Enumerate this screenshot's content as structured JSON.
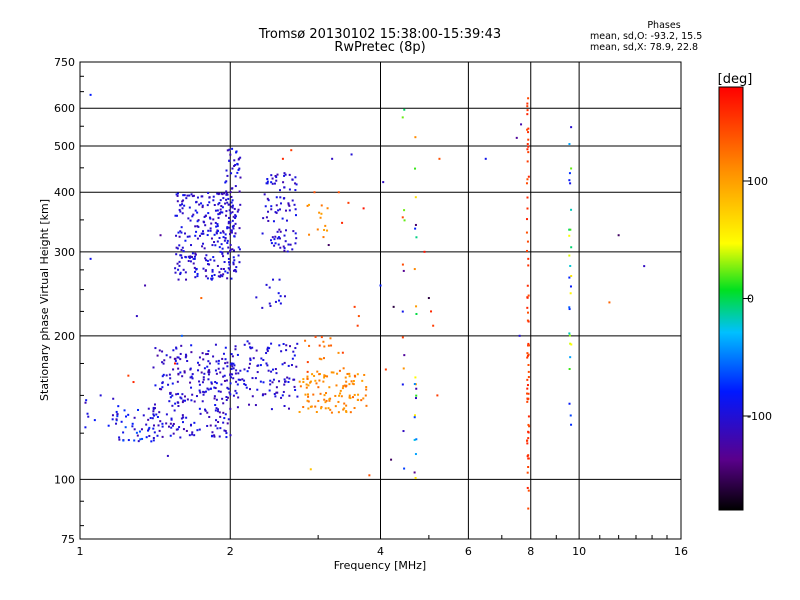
{
  "header": {
    "title_line1": "Tromsø 20130102 15:38:00-15:39:43",
    "title_line2": "RwPretec (8p)",
    "phase_title": "Phases",
    "phase_o": "mean, sd,O: -93.2, 15.5",
    "phase_x": "mean, sd,X:  78.9, 22.8"
  },
  "colorbar": {
    "unit_label": "[deg]",
    "tick_labels": [
      "100",
      "0",
      "-100"
    ],
    "tick_values": [
      100,
      0,
      -100
    ],
    "range": [
      -180,
      180
    ]
  },
  "chart_data": {
    "type": "scatter",
    "title": "Tromsø 20130102 15:38:00-15:39:43",
    "subtitle": "RwPretec (8p)",
    "xlabel": "Frequency [MHz]",
    "ylabel": "Stationary phase Virtual Height [km]",
    "x_scale": "log",
    "y_scale": "log",
    "xlim": [
      1,
      16
    ],
    "ylim": [
      75,
      750
    ],
    "x_ticks": [
      1,
      2,
      4,
      6,
      8,
      10,
      16
    ],
    "x_tick_labels": [
      "1",
      "2",
      "4",
      "6",
      "8",
      "10",
      "16"
    ],
    "y_ticks": [
      75,
      100,
      200,
      300,
      400,
      500,
      600,
      750
    ],
    "y_tick_labels": [
      "75",
      "100",
      "200",
      "300",
      "400",
      "500",
      "600",
      "750"
    ],
    "grid": true,
    "series": [
      {
        "clusters": [
          {
            "xr": [
              1.4,
              2.02
            ],
            "yr": [
              122,
              192
            ],
            "phase": [
              -125,
              -85
            ],
            "n": 260
          },
          {
            "xr": [
              2.0,
              2.75
            ],
            "yr": [
              140,
              195
            ],
            "phase": [
              -120,
              -85
            ],
            "n": 120
          },
          {
            "xr": [
              1.18,
              1.42
            ],
            "yr": [
              120,
              142
            ],
            "phase": [
              -120,
              -60
            ],
            "n": 45
          },
          {
            "xr": [
              1.0,
              1.2
            ],
            "yr": [
              128,
              148
            ],
            "phase": [
              -120,
              -80
            ],
            "n": 12
          },
          {
            "xr": [
              2.75,
              3.75
            ],
            "yr": [
              138,
              168
            ],
            "phase": [
              95,
              130
            ],
            "n": 110
          },
          {
            "xr": [
              2.8,
              3.4
            ],
            "yr": [
              168,
              200
            ],
            "phase": [
              110,
              150
            ],
            "n": 20
          },
          {
            "xr": [
              1.55,
              2.05
            ],
            "yr": [
              262,
              400
            ],
            "phase": [
              -120,
              -85
            ],
            "n": 260
          },
          {
            "xr": [
              1.95,
              2.1
            ],
            "yr": [
              270,
              500
            ],
            "phase": [
              -120,
              -85
            ],
            "n": 70
          },
          {
            "xr": [
              2.32,
              2.72
            ],
            "yr": [
              300,
              440
            ],
            "phase": [
              -120,
              -85
            ],
            "n": 90
          },
          {
            "xr": [
              2.25,
              2.6
            ],
            "yr": [
              220,
              265
            ],
            "phase": [
              -110,
              -90
            ],
            "n": 14
          },
          {
            "xr": [
              2.85,
              3.15
            ],
            "yr": [
              320,
              380
            ],
            "phase": [
              95,
              125
            ],
            "n": 12
          }
        ],
        "columns": [
          {
            "x": 7.9,
            "yr": [
              86,
              660
            ],
            "phase": [
              140,
              165
            ],
            "n": 70
          },
          {
            "x": 9.6,
            "yr": [
              120,
              550
            ],
            "phase": [
              -140,
              60
            ],
            "n": 28
          },
          {
            "x": 4.7,
            "yr": [
              95,
              620
            ],
            "phase": [
              -160,
              120
            ],
            "n": 22
          },
          {
            "x": 4.45,
            "yr": [
              105,
              600
            ],
            "phase": [
              -150,
              150
            ],
            "n": 14
          }
        ],
        "points": [
          {
            "x": 1.05,
            "y": 640,
            "phase": -80
          },
          {
            "x": 1.05,
            "y": 290,
            "phase": -90
          },
          {
            "x": 1.1,
            "y": 150,
            "phase": -100
          },
          {
            "x": 1.3,
            "y": 220,
            "phase": -110
          },
          {
            "x": 1.35,
            "y": 255,
            "phase": -120
          },
          {
            "x": 1.45,
            "y": 325,
            "phase": -130
          },
          {
            "x": 1.5,
            "y": 112,
            "phase": -110
          },
          {
            "x": 1.6,
            "y": 200,
            "phase": -60
          },
          {
            "x": 1.75,
            "y": 240,
            "phase": 130
          },
          {
            "x": 1.25,
            "y": 165,
            "phase": 150
          },
          {
            "x": 1.28,
            "y": 160,
            "phase": 160
          },
          {
            "x": 1.55,
            "y": 175,
            "phase": 170
          },
          {
            "x": 2.55,
            "y": 470,
            "phase": 160
          },
          {
            "x": 2.65,
            "y": 490,
            "phase": 150
          },
          {
            "x": 2.95,
            "y": 400,
            "phase": 140
          },
          {
            "x": 2.9,
            "y": 105,
            "phase": 80
          },
          {
            "x": 3.1,
            "y": 340,
            "phase": 110
          },
          {
            "x": 3.15,
            "y": 310,
            "phase": -150
          },
          {
            "x": 3.2,
            "y": 470,
            "phase": -110
          },
          {
            "x": 3.3,
            "y": 400,
            "phase": 140
          },
          {
            "x": 3.35,
            "y": 345,
            "phase": 160
          },
          {
            "x": 3.45,
            "y": 380,
            "phase": 150
          },
          {
            "x": 3.5,
            "y": 480,
            "phase": -100
          },
          {
            "x": 3.55,
            "y": 230,
            "phase": 150
          },
          {
            "x": 3.6,
            "y": 210,
            "phase": 150
          },
          {
            "x": 3.62,
            "y": 220,
            "phase": 140
          },
          {
            "x": 3.7,
            "y": 370,
            "phase": 170
          },
          {
            "x": 3.8,
            "y": 102,
            "phase": 140
          },
          {
            "x": 4.0,
            "y": 255,
            "phase": -80
          },
          {
            "x": 4.05,
            "y": 420,
            "phase": -110
          },
          {
            "x": 4.1,
            "y": 170,
            "phase": 150
          },
          {
            "x": 4.2,
            "y": 110,
            "phase": -150
          },
          {
            "x": 4.25,
            "y": 230,
            "phase": -160
          },
          {
            "x": 4.9,
            "y": 300,
            "phase": 170
          },
          {
            "x": 5.0,
            "y": 240,
            "phase": -160
          },
          {
            "x": 5.05,
            "y": 225,
            "phase": 160
          },
          {
            "x": 5.1,
            "y": 210,
            "phase": 150
          },
          {
            "x": 5.2,
            "y": 150,
            "phase": 150
          },
          {
            "x": 5.25,
            "y": 470,
            "phase": 140
          },
          {
            "x": 6.5,
            "y": 470,
            "phase": -90
          },
          {
            "x": 7.5,
            "y": 520,
            "phase": -130
          },
          {
            "x": 7.6,
            "y": 200,
            "phase": -100
          },
          {
            "x": 7.65,
            "y": 555,
            "phase": -120
          },
          {
            "x": 11.5,
            "y": 235,
            "phase": 130
          },
          {
            "x": 12.0,
            "y": 325,
            "phase": -150
          },
          {
            "x": 13.5,
            "y": 280,
            "phase": -110
          }
        ]
      }
    ]
  }
}
